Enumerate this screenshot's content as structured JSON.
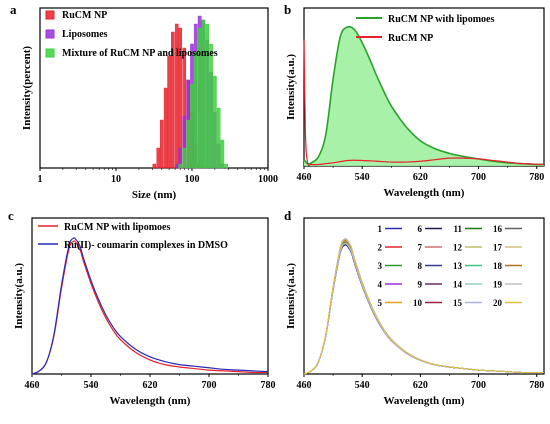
{
  "chart_data": [
    {
      "panel": "a",
      "type": "bar",
      "xlabel": "Size (nm)",
      "ylabel": "Intensity(percent)",
      "x_scale": "log",
      "xlim": [
        1,
        1000
      ],
      "ylim": [
        0,
        20
      ],
      "x_ticks": [
        1,
        10,
        100,
        1000
      ],
      "x_tick_labels": [
        "1",
        "10",
        "100",
        "1000"
      ],
      "legend_position": "top-left",
      "series": [
        {
          "name": "RuCM NP",
          "color": "#e8202a",
          "x": [
            32,
            36,
            40,
            45,
            50,
            56,
            63,
            70,
            79,
            89,
            100,
            112,
            126
          ],
          "values": [
            0.5,
            2.5,
            6.0,
            10.0,
            14.0,
            17.0,
            18.0,
            17.5,
            15.0,
            11.0,
            7.0,
            3.0,
            0.5
          ]
        },
        {
          "name": "Liposomes",
          "color": "#9b30d9",
          "x": [
            63,
            70,
            79,
            89,
            100,
            112,
            126,
            141,
            158,
            178,
            200,
            224,
            251
          ],
          "values": [
            0.5,
            2.5,
            6.5,
            11.0,
            15.5,
            18.0,
            19.0,
            18.5,
            16.0,
            12.0,
            7.0,
            3.0,
            0.5
          ]
        },
        {
          "name": "Mixture of RuCM NP and liposomes",
          "color": "#3ecf3e",
          "x": [
            70,
            79,
            89,
            100,
            112,
            126,
            141,
            158,
            178,
            200,
            224,
            251,
            282
          ],
          "values": [
            0.5,
            2.5,
            6.0,
            10.5,
            14.5,
            17.5,
            18.5,
            18.0,
            15.5,
            11.5,
            7.5,
            3.5,
            0.5
          ]
        }
      ]
    },
    {
      "panel": "b",
      "type": "area",
      "xlabel": "Wavelength (nm)",
      "ylabel": "Intensity(a.u.)",
      "xlim": [
        460,
        790
      ],
      "ylim": [
        0,
        100
      ],
      "x_ticks": [
        460,
        540,
        620,
        700,
        780
      ],
      "legend_position": "top-right",
      "series": [
        {
          "name": "RuCM NP with lipomoes",
          "color": "#2aa12a",
          "fill": "#9ef09e",
          "x": [
            460,
            465,
            470,
            480,
            490,
            500,
            510,
            520,
            530,
            540,
            550,
            560,
            570,
            580,
            600,
            620,
            640,
            660,
            680,
            700,
            720,
            740,
            760,
            780,
            790
          ],
          "y": [
            4,
            1.5,
            2,
            6,
            20,
            55,
            82,
            88,
            86,
            78,
            68,
            57,
            47,
            38,
            25,
            16,
            11,
            8,
            6,
            4.5,
            3,
            2,
            1.5,
            1,
            1
          ]
        },
        {
          "name": "RuCM  NP",
          "color": "#e8202a",
          "x": [
            460,
            462,
            465,
            470,
            480,
            500,
            520,
            540,
            560,
            580,
            600,
            620,
            640,
            660,
            680,
            700,
            720,
            740,
            760,
            790
          ],
          "y": [
            80,
            20,
            2,
            1,
            1,
            2,
            3.5,
            3.5,
            3,
            2.5,
            2.5,
            3,
            4,
            5,
            5,
            4.5,
            3.5,
            2.5,
            1.5,
            1
          ]
        }
      ]
    },
    {
      "panel": "c",
      "type": "line",
      "xlabel": "Wavelength (nm)",
      "ylabel": "Intensity(a.u.)",
      "xlim": [
        460,
        780
      ],
      "ylim": [
        0,
        100
      ],
      "x_ticks": [
        460,
        540,
        620,
        700,
        780
      ],
      "legend_position": "top-right",
      "series": [
        {
          "name": "RuCM NP with lipomoes",
          "color": "#e8202a",
          "x": [
            460,
            470,
            480,
            490,
            500,
            510,
            516,
            520,
            525,
            530,
            540,
            550,
            560,
            570,
            580,
            600,
            620,
            640,
            660,
            680,
            700,
            720,
            740,
            760,
            780
          ],
          "y": [
            0,
            2,
            8,
            25,
            55,
            80,
            85,
            84,
            80,
            72,
            58,
            46,
            36,
            28,
            22,
            14,
            9,
            6,
            4.5,
            3.5,
            2.5,
            2,
            1.5,
            1,
            1
          ]
        },
        {
          "name": "Ru(II)- coumarin complexes in DMSO",
          "color": "#2a2ab8",
          "x": [
            460,
            470,
            480,
            490,
            500,
            510,
            516,
            520,
            525,
            530,
            540,
            550,
            560,
            570,
            580,
            600,
            620,
            640,
            660,
            680,
            700,
            720,
            740,
            760,
            780
          ],
          "y": [
            0,
            2,
            8,
            26,
            57,
            82,
            87,
            86,
            82,
            74,
            60,
            48,
            38,
            30,
            24,
            16,
            11,
            8,
            6,
            5,
            4,
            3,
            2.5,
            2,
            1.5
          ]
        }
      ]
    },
    {
      "panel": "d",
      "type": "line",
      "xlabel": "Wavelength (nm)",
      "ylabel": "Intensity(a.u.)",
      "xlim": [
        460,
        790
      ],
      "ylim": [
        0,
        100
      ],
      "x_ticks": [
        460,
        540,
        620,
        700,
        780
      ],
      "legend_position": "top-right",
      "x": [
        460,
        470,
        480,
        490,
        500,
        510,
        516,
        520,
        525,
        530,
        540,
        550,
        560,
        570,
        580,
        600,
        620,
        640,
        660,
        680,
        700,
        720,
        740,
        760,
        790
      ],
      "base": [
        0,
        2,
        8,
        25,
        55,
        80,
        85,
        84,
        80,
        72,
        58,
        46,
        36,
        28,
        22,
        14,
        9,
        6,
        4.5,
        3.5,
        2.5,
        2,
        1.5,
        1,
        1
      ],
      "series": [
        {
          "name": "1",
          "color": "#2a2ab8",
          "scale": 0.97
        },
        {
          "name": "2",
          "color": "#e8202a",
          "scale": 0.98
        },
        {
          "name": "3",
          "color": "#2a9a2a",
          "scale": 0.99
        },
        {
          "name": "4",
          "color": "#9b30d9",
          "scale": 1.0
        },
        {
          "name": "5",
          "color": "#e0a020",
          "scale": 1.01
        },
        {
          "name": "6",
          "color": "#1a1a5a",
          "scale": 0.975
        },
        {
          "name": "7",
          "color": "#d07070",
          "scale": 0.985
        },
        {
          "name": "8",
          "color": "#3a3a8a",
          "scale": 0.995
        },
        {
          "name": "9",
          "color": "#6a2a6a",
          "scale": 1.005
        },
        {
          "name": "10",
          "color": "#a02040",
          "scale": 1.015
        },
        {
          "name": "11",
          "color": "#1a7a1a",
          "scale": 0.99
        },
        {
          "name": "12",
          "color": "#c0c060",
          "scale": 1.0
        },
        {
          "name": "13",
          "color": "#40c080",
          "scale": 1.01
        },
        {
          "name": "14",
          "color": "#90d0c0",
          "scale": 0.98
        },
        {
          "name": "15",
          "color": "#b0b0e0",
          "scale": 1.02
        },
        {
          "name": "16",
          "color": "#606060",
          "scale": 0.995
        },
        {
          "name": "17",
          "color": "#d0c080",
          "scale": 1.0
        },
        {
          "name": "18",
          "color": "#b07020",
          "scale": 1.005
        },
        {
          "name": "19",
          "color": "#c0c0c0",
          "scale": 0.985
        },
        {
          "name": "20",
          "color": "#e0c040",
          "scale": 1.012
        }
      ]
    }
  ]
}
